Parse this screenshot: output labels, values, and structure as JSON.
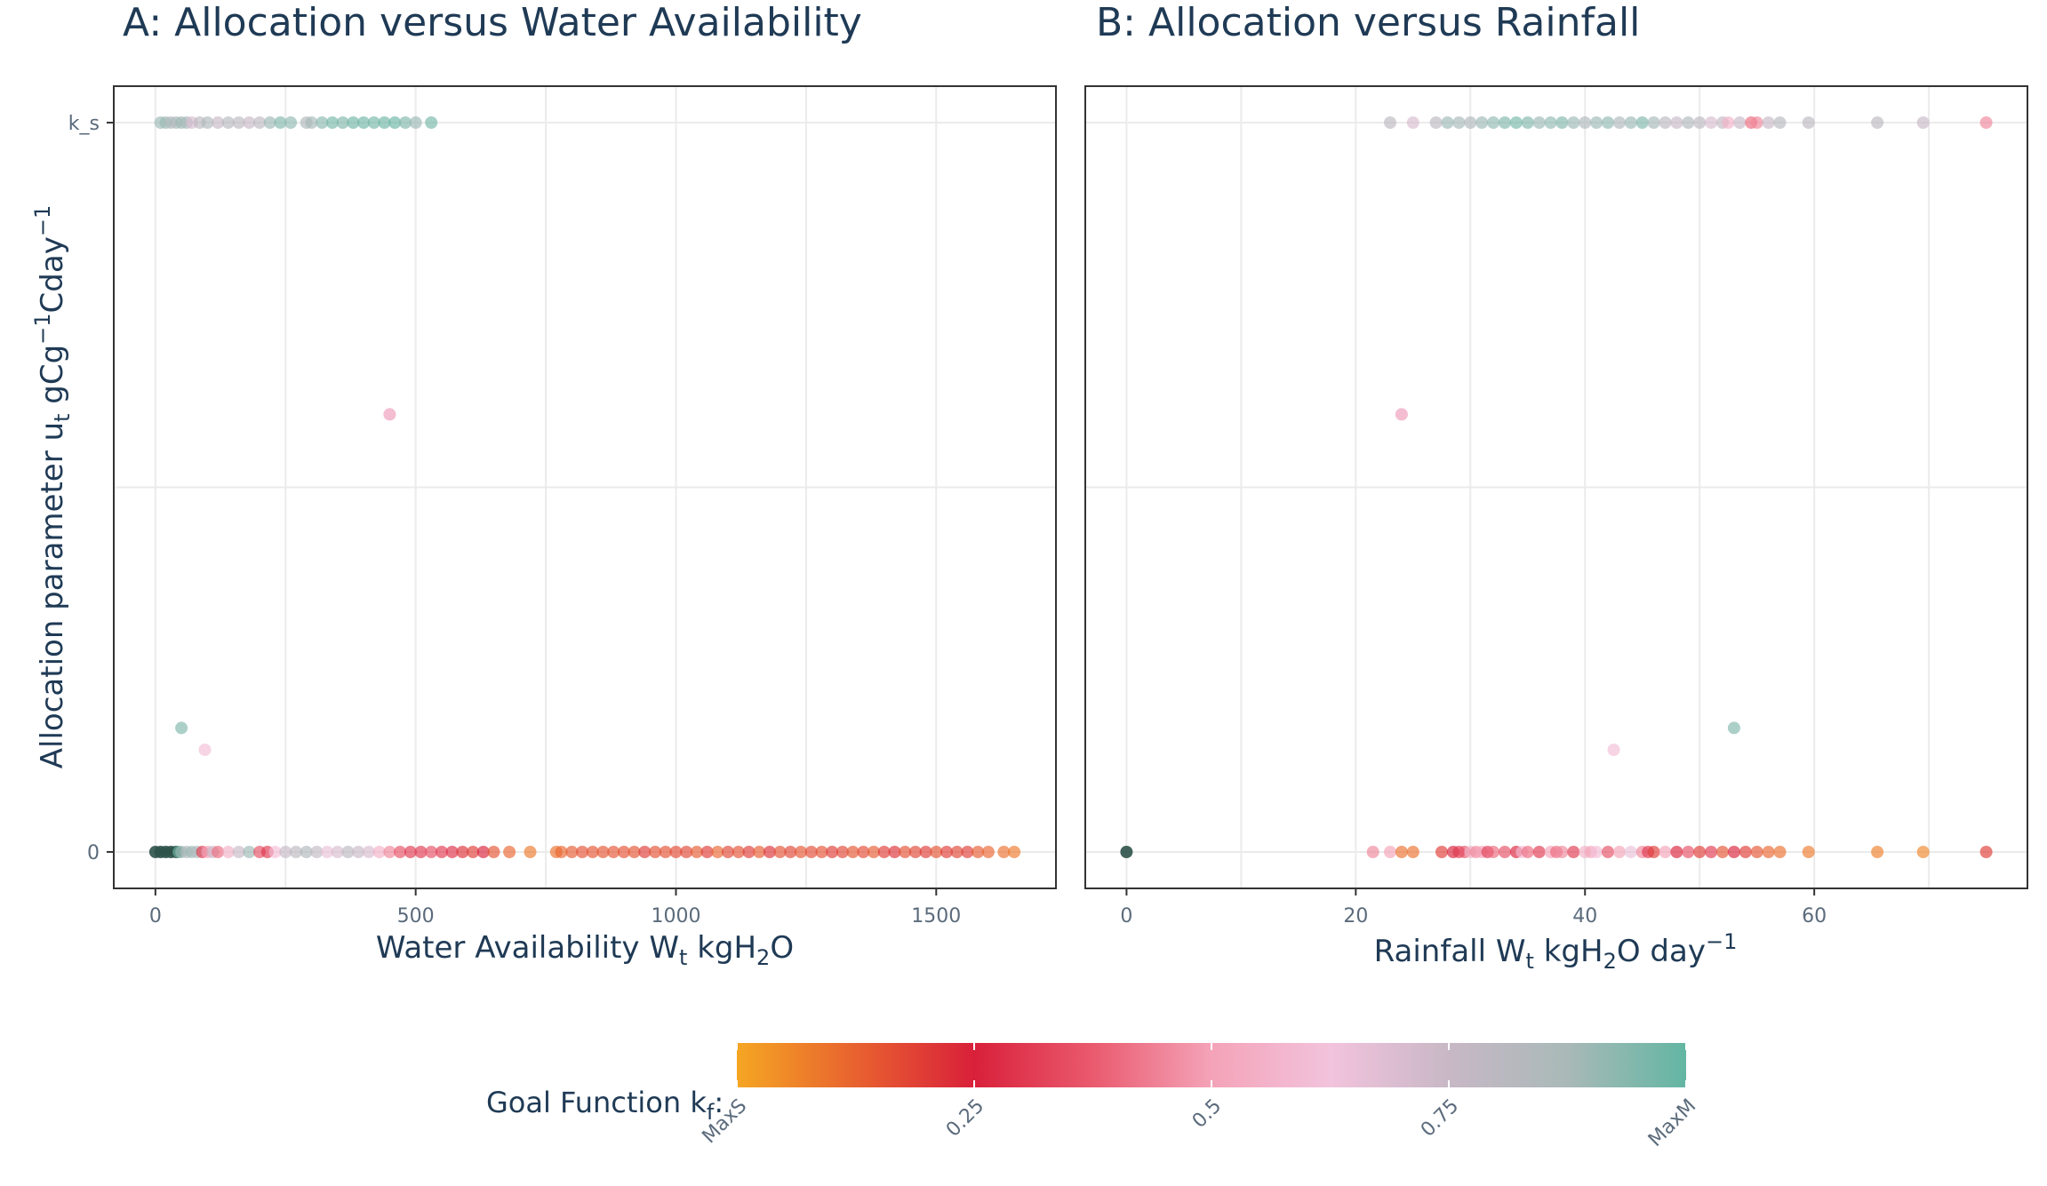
{
  "chart_data": [
    {
      "type": "scatter",
      "title": "A: Allocation versus Water Availability",
      "xlabel": "Water Availability W_t kgH2O",
      "ylabel": "Allocation parameter u_t gCg^-1Cday^-1",
      "x_ticks": [
        0,
        500,
        1000,
        1500
      ],
      "xlim": [
        -80,
        1730
      ],
      "y_ticks": [
        {
          "value": 0,
          "label": "0"
        },
        {
          "value": 1,
          "label": "k_s"
        }
      ],
      "ylim": [
        -0.05,
        1.05
      ],
      "grid": true,
      "series": [
        {
          "y": 1,
          "points": [
            [
              10,
              0.9
            ],
            [
              20,
              0.9
            ],
            [
              30,
              0.85
            ],
            [
              40,
              0.85
            ],
            [
              50,
              0.9
            ],
            [
              60,
              0.88
            ],
            [
              70,
              0.7
            ],
            [
              85,
              0.8
            ],
            [
              100,
              0.85
            ],
            [
              120,
              0.75
            ],
            [
              140,
              0.82
            ],
            [
              160,
              0.8
            ],
            [
              180,
              0.75
            ],
            [
              200,
              0.8
            ],
            [
              220,
              0.9
            ],
            [
              240,
              0.95
            ],
            [
              260,
              0.92
            ],
            [
              290,
              0.85
            ],
            [
              300,
              0.88
            ],
            [
              320,
              0.93
            ],
            [
              340,
              0.97
            ],
            [
              360,
              0.95
            ],
            [
              380,
              0.98
            ],
            [
              400,
              0.98
            ],
            [
              420,
              0.97
            ],
            [
              440,
              0.98
            ],
            [
              460,
              0.99
            ],
            [
              480,
              0.95
            ],
            [
              500,
              0.9
            ],
            [
              530,
              0.97
            ]
          ]
        },
        {
          "y": 0.6,
          "points": [
            [
              450,
              0.6
            ],
            [
              450,
              0.55
            ]
          ]
        },
        {
          "y": 0.17,
          "points": [
            [
              50,
              0.95
            ]
          ]
        },
        {
          "y": 0.14,
          "points": [
            [
              95,
              0.6
            ]
          ]
        },
        {
          "y": 0,
          "points": [
            [
              0,
              1.0
            ],
            [
              10,
              1.0
            ],
            [
              20,
              1.0
            ],
            [
              30,
              1.0
            ],
            [
              40,
              1.0
            ],
            [
              45,
              0.98
            ],
            [
              50,
              0.9
            ],
            [
              60,
              0.85
            ],
            [
              70,
              0.9
            ],
            [
              80,
              0.85
            ],
            [
              90,
              0.3
            ],
            [
              100,
              0.5
            ],
            [
              110,
              0.75
            ],
            [
              120,
              0.4
            ],
            [
              140,
              0.55
            ],
            [
              160,
              0.75
            ],
            [
              180,
              0.9
            ],
            [
              200,
              0.35
            ],
            [
              215,
              0.3
            ],
            [
              230,
              0.6
            ],
            [
              250,
              0.75
            ],
            [
              270,
              0.8
            ],
            [
              290,
              0.85
            ],
            [
              310,
              0.78
            ],
            [
              330,
              0.65
            ],
            [
              350,
              0.7
            ],
            [
              370,
              0.8
            ],
            [
              390,
              0.75
            ],
            [
              410,
              0.7
            ],
            [
              430,
              0.55
            ],
            [
              450,
              0.45
            ],
            [
              470,
              0.35
            ],
            [
              490,
              0.3
            ],
            [
              510,
              0.3
            ],
            [
              530,
              0.35
            ],
            [
              550,
              0.3
            ],
            [
              570,
              0.28
            ],
            [
              590,
              0.22
            ],
            [
              610,
              0.2
            ],
            [
              630,
              0.25
            ],
            [
              650,
              0.15
            ],
            [
              680,
              0.12
            ],
            [
              720,
              0.08
            ],
            [
              770,
              0.1
            ],
            [
              780,
              0.12
            ],
            [
              800,
              0.14
            ],
            [
              820,
              0.16
            ],
            [
              840,
              0.15
            ],
            [
              860,
              0.15
            ],
            [
              880,
              0.15
            ],
            [
              900,
              0.16
            ],
            [
              920,
              0.15
            ],
            [
              940,
              0.2
            ],
            [
              960,
              0.16
            ],
            [
              980,
              0.16
            ],
            [
              1000,
              0.17
            ],
            [
              1020,
              0.18
            ],
            [
              1040,
              0.14
            ],
            [
              1060,
              0.2
            ],
            [
              1080,
              0.12
            ],
            [
              1100,
              0.18
            ],
            [
              1120,
              0.16
            ],
            [
              1140,
              0.2
            ],
            [
              1160,
              0.14
            ],
            [
              1180,
              0.22
            ],
            [
              1200,
              0.16
            ],
            [
              1220,
              0.18
            ],
            [
              1240,
              0.15
            ],
            [
              1260,
              0.17
            ],
            [
              1280,
              0.16
            ],
            [
              1300,
              0.2
            ],
            [
              1320,
              0.18
            ],
            [
              1340,
              0.15
            ],
            [
              1360,
              0.17
            ],
            [
              1380,
              0.14
            ],
            [
              1400,
              0.2
            ],
            [
              1420,
              0.22
            ],
            [
              1440,
              0.16
            ],
            [
              1460,
              0.18
            ],
            [
              1480,
              0.2
            ],
            [
              1500,
              0.15
            ],
            [
              1520,
              0.2
            ],
            [
              1540,
              0.18
            ],
            [
              1560,
              0.2
            ],
            [
              1580,
              0.14
            ],
            [
              1600,
              0.12
            ],
            [
              1630,
              0.1
            ],
            [
              1650,
              0.08
            ]
          ]
        }
      ]
    },
    {
      "type": "scatter",
      "title": "B: Allocation versus Rainfall",
      "xlabel": "Rainfall W_t kgH2O day^-1",
      "ylabel": "",
      "x_ticks": [
        0,
        20,
        40,
        60
      ],
      "xlim": [
        -3.6,
        78.6
      ],
      "ylim": [
        -0.05,
        1.05
      ],
      "grid": true,
      "series": [
        {
          "y": 1,
          "points": [
            [
              23,
              0.8
            ],
            [
              25,
              0.7
            ],
            [
              27,
              0.8
            ],
            [
              28,
              0.9
            ],
            [
              29,
              0.88
            ],
            [
              30,
              0.85
            ],
            [
              31,
              0.9
            ],
            [
              32,
              0.92
            ],
            [
              33,
              0.95
            ],
            [
              34,
              0.97
            ],
            [
              35,
              0.95
            ],
            [
              36,
              0.9
            ],
            [
              37,
              0.92
            ],
            [
              38,
              0.95
            ],
            [
              39,
              0.9
            ],
            [
              40,
              0.85
            ],
            [
              41,
              0.9
            ],
            [
              42,
              0.92
            ],
            [
              43,
              0.85
            ],
            [
              44,
              0.9
            ],
            [
              45,
              0.95
            ],
            [
              46,
              0.88
            ],
            [
              47,
              0.8
            ],
            [
              48,
              0.75
            ],
            [
              49,
              0.85
            ],
            [
              50,
              0.8
            ],
            [
              51,
              0.7
            ],
            [
              52,
              0.78
            ],
            [
              52.5,
              0.55
            ],
            [
              53.5,
              0.75
            ],
            [
              54.5,
              0.4
            ],
            [
              55,
              0.45
            ],
            [
              56,
              0.75
            ],
            [
              57,
              0.82
            ],
            [
              59.5,
              0.8
            ],
            [
              65.5,
              0.8
            ],
            [
              69.5,
              0.75
            ],
            [
              75,
              0.45
            ]
          ]
        },
        {
          "y": 0.6,
          "points": [
            [
              24,
              0.6
            ],
            [
              24,
              0.55
            ]
          ]
        },
        {
          "y": 0.17,
          "points": [
            [
              53,
              0.95
            ]
          ]
        },
        {
          "y": 0.14,
          "points": [
            [
              42.5,
              0.6
            ]
          ]
        },
        {
          "y": 0,
          "points": [
            [
              0,
              1.0
            ],
            [
              21.5,
              0.45
            ],
            [
              23,
              0.5
            ],
            [
              24,
              0.1
            ],
            [
              25,
              0.1
            ],
            [
              27.5,
              0.2
            ],
            [
              28.5,
              0.25
            ],
            [
              29,
              0.3
            ],
            [
              29.5,
              0.35
            ],
            [
              30,
              0.55
            ],
            [
              30.5,
              0.45
            ],
            [
              31,
              0.5
            ],
            [
              31.5,
              0.3
            ],
            [
              32,
              0.4
            ],
            [
              33,
              0.35
            ],
            [
              34,
              0.25
            ],
            [
              34.5,
              0.6
            ],
            [
              35,
              0.4
            ],
            [
              36,
              0.3
            ],
            [
              37,
              0.5
            ],
            [
              37.5,
              0.4
            ],
            [
              38,
              0.45
            ],
            [
              39,
              0.3
            ],
            [
              40,
              0.55
            ],
            [
              40.5,
              0.5
            ],
            [
              41,
              0.6
            ],
            [
              42,
              0.35
            ],
            [
              43,
              0.5
            ],
            [
              44,
              0.65
            ],
            [
              45,
              0.45
            ],
            [
              45.5,
              0.3
            ],
            [
              46,
              0.2
            ],
            [
              47,
              0.5
            ],
            [
              48,
              0.25
            ],
            [
              49,
              0.35
            ],
            [
              50,
              0.2
            ],
            [
              51,
              0.3
            ],
            [
              52,
              0.15
            ],
            [
              53,
              0.25
            ],
            [
              54,
              0.2
            ],
            [
              55,
              0.15
            ],
            [
              56,
              0.12
            ],
            [
              57,
              0.1
            ],
            [
              59.5,
              0.08
            ],
            [
              65.5,
              0.07
            ],
            [
              69.5,
              0.06
            ],
            [
              75,
              0.2
            ]
          ]
        }
      ]
    }
  ],
  "colorbar": {
    "title": "Goal Function k_f:",
    "stops": [
      "#f5a623",
      "#e8622f",
      "#d9203a",
      "#ea5a6e",
      "#f4a3b8",
      "#f2c3dc",
      "#c8b8c6",
      "#a9b9b8",
      "#63b6a3"
    ],
    "tick_values": [
      0,
      0.25,
      0.5,
      0.75,
      1
    ],
    "tick_labels": [
      "MaxS",
      "0.25",
      "0.5",
      "0.75",
      "MaxM"
    ]
  }
}
